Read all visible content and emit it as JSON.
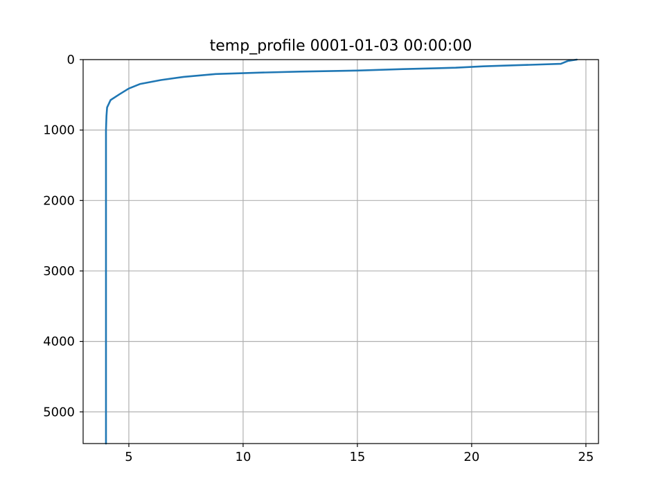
{
  "chart_data": {
    "type": "line",
    "title": "temp_profile 0001-01-03 00:00:00",
    "xlabel": "",
    "ylabel": "",
    "xlim": [
      3.0,
      25.55
    ],
    "ylim": [
      5450,
      0
    ],
    "y_inverted": true,
    "grid": true,
    "x_ticks": [
      5,
      10,
      15,
      20,
      25
    ],
    "x_tick_labels": [
      "5",
      "10",
      "15",
      "20",
      "25"
    ],
    "y_ticks": [
      0,
      1000,
      2000,
      3000,
      4000,
      5000
    ],
    "y_tick_labels": [
      "0",
      "1000",
      "2000",
      "3000",
      "4000",
      "5000"
    ],
    "series": [
      {
        "name": "temp_profile",
        "color": "#1f77b4",
        "x": [
          24.6,
          24.2,
          23.9,
          22.0,
          20.5,
          19.3,
          17.0,
          15.0,
          12.5,
          10.7,
          8.8,
          7.4,
          6.4,
          5.5,
          5.0,
          4.6,
          4.2,
          4.05,
          4.02,
          4.0,
          4.0,
          4.0,
          4.0
        ],
        "y": [
          0,
          20,
          60,
          80,
          95,
          115,
          135,
          155,
          170,
          185,
          205,
          245,
          290,
          345,
          410,
          490,
          575,
          680,
          800,
          1000,
          2000,
          4000,
          5450
        ]
      }
    ]
  }
}
